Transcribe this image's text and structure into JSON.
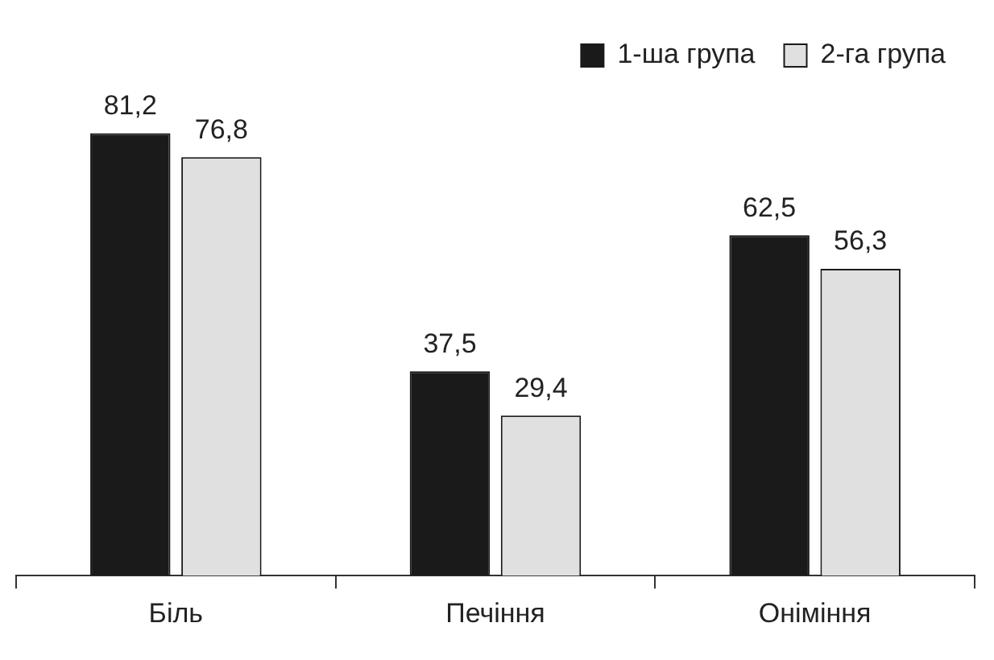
{
  "chart_data": {
    "type": "bar",
    "categories": [
      "Біль",
      "Печіння",
      "Оніміння"
    ],
    "series": [
      {
        "name": "1-ша група",
        "color": "#1a1a1a",
        "values": [
          81.2,
          37.5,
          62.5
        ],
        "value_labels": [
          "81,2",
          "37,5",
          "62,5"
        ]
      },
      {
        "name": "2-га група",
        "color": "#e0e0e0",
        "values": [
          76.8,
          29.4,
          56.3
        ],
        "value_labels": [
          "76,8",
          "29,4",
          "56,3"
        ]
      }
    ],
    "tick_labels": "x",
    "grid": false,
    "legend": "top right"
  }
}
